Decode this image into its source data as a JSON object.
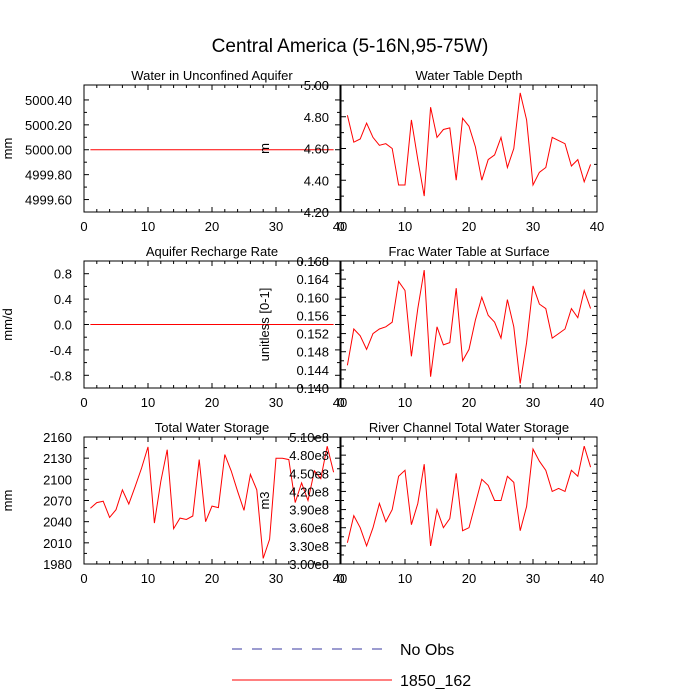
{
  "title": "Central America (5-16N,95-75W)",
  "colors": {
    "series": "#ff0000",
    "obs": "#3a3aa0",
    "axis": "#000000"
  },
  "legend": {
    "entries": [
      {
        "label": "No Obs",
        "style": "dashed",
        "color": "#3a3aa0"
      },
      {
        "label": "1850_162",
        "style": "solid",
        "color": "#ff0000"
      }
    ]
  },
  "chart_data": [
    {
      "type": "line",
      "title": "Water in Unconfined Aquifer",
      "ylabel": "mm",
      "xlabel": "",
      "xlim": [
        0,
        40
      ],
      "ylim": [
        4999.5,
        5000.52
      ],
      "xticks": [
        0,
        10,
        20,
        30,
        40
      ],
      "xtick_labels": [
        "0",
        "10",
        "20",
        "30",
        "40"
      ],
      "yticks": [
        4999.6,
        4999.8,
        5000.0,
        5000.2,
        5000.4
      ],
      "ytick_labels": [
        "4999.60",
        "4999.80",
        "5000.00",
        "5000.20",
        "5000.40"
      ],
      "series": [
        {
          "name": "1850_162",
          "x": [
            1,
            2,
            3,
            4,
            5,
            6,
            7,
            8,
            9,
            10,
            11,
            12,
            13,
            14,
            15,
            16,
            17,
            18,
            19,
            20,
            21,
            22,
            23,
            24,
            25,
            26,
            27,
            28,
            29,
            30,
            31,
            32,
            33,
            34,
            35,
            36,
            37,
            38,
            39
          ],
          "values": [
            5000,
            5000,
            5000,
            5000,
            5000,
            5000,
            5000,
            5000,
            5000,
            5000,
            5000,
            5000,
            5000,
            5000,
            5000,
            5000,
            5000,
            5000,
            5000,
            5000,
            5000,
            5000,
            5000,
            5000,
            5000,
            5000,
            5000,
            5000,
            5000,
            5000,
            5000,
            5000,
            5000,
            5000,
            5000,
            5000,
            5000,
            5000,
            5000
          ]
        }
      ]
    },
    {
      "type": "line",
      "title": "Water Table Depth",
      "ylabel": "m",
      "xlabel": "",
      "xlim": [
        0,
        40
      ],
      "ylim": [
        4.2,
        5.0
      ],
      "xticks": [
        0,
        10,
        20,
        30,
        40
      ],
      "xtick_labels": [
        "0",
        "10",
        "20",
        "30",
        "40"
      ],
      "yticks": [
        4.2,
        4.4,
        4.6,
        4.8,
        5.0
      ],
      "ytick_labels": [
        "4.20",
        "4.40",
        "4.60",
        "4.80",
        "5.00"
      ],
      "series": [
        {
          "name": "1850_162",
          "x": [
            1,
            2,
            3,
            4,
            5,
            6,
            7,
            8,
            9,
            10,
            11,
            12,
            13,
            14,
            15,
            16,
            17,
            18,
            19,
            20,
            21,
            22,
            23,
            24,
            25,
            26,
            27,
            28,
            29,
            30,
            31,
            32,
            33,
            34,
            35,
            36,
            37,
            38,
            39
          ],
          "values": [
            4.81,
            4.64,
            4.66,
            4.76,
            4.67,
            4.62,
            4.63,
            4.6,
            4.37,
            4.37,
            4.78,
            4.53,
            4.3,
            4.86,
            4.67,
            4.72,
            4.73,
            4.4,
            4.79,
            4.74,
            4.61,
            4.4,
            4.53,
            4.56,
            4.67,
            4.48,
            4.6,
            4.95,
            4.78,
            4.37,
            4.45,
            4.48,
            4.67,
            4.65,
            4.63,
            4.49,
            4.53,
            4.39,
            4.5
          ]
        }
      ]
    },
    {
      "type": "line",
      "title": "Aquifer Recharge Rate",
      "ylabel": "mm/d",
      "xlabel": "",
      "xlim": [
        0,
        40
      ],
      "ylim": [
        -1.0,
        1.0
      ],
      "xticks": [
        0,
        10,
        20,
        30,
        40
      ],
      "xtick_labels": [
        "0",
        "10",
        "20",
        "30",
        "40"
      ],
      "yticks": [
        -0.8,
        -0.4,
        0.0,
        0.4,
        0.8
      ],
      "ytick_labels": [
        "-0.8",
        "-0.4",
        "0.0",
        "0.4",
        "0.8"
      ],
      "series": [
        {
          "name": "1850_162",
          "x": [
            1,
            2,
            3,
            4,
            5,
            6,
            7,
            8,
            9,
            10,
            11,
            12,
            13,
            14,
            15,
            16,
            17,
            18,
            19,
            20,
            21,
            22,
            23,
            24,
            25,
            26,
            27,
            28,
            29,
            30,
            31,
            32,
            33,
            34,
            35,
            36,
            37,
            38,
            39
          ],
          "values": [
            0,
            0,
            0,
            0,
            0,
            0,
            0,
            0,
            0,
            0,
            0,
            0,
            0,
            0,
            0,
            0,
            0,
            0,
            0,
            0,
            0,
            0,
            0,
            0,
            0,
            0,
            0,
            0,
            0,
            0,
            0,
            0,
            0,
            0,
            0,
            0,
            0,
            0,
            0
          ]
        }
      ]
    },
    {
      "type": "line",
      "title": "Frac Water Table at Surface",
      "ylabel": "unitless [0-1]",
      "xlabel": "",
      "xlim": [
        0,
        40
      ],
      "ylim": [
        0.14,
        0.168
      ],
      "xticks": [
        0,
        10,
        20,
        30,
        40
      ],
      "xtick_labels": [
        "0",
        "10",
        "20",
        "30",
        "40"
      ],
      "yticks": [
        0.14,
        0.144,
        0.148,
        0.152,
        0.156,
        0.16,
        0.164,
        0.168
      ],
      "ytick_labels": [
        "0.140",
        "0.144",
        "0.148",
        "0.152",
        "0.156",
        "0.160",
        "0.164",
        "0.168"
      ],
      "series": [
        {
          "name": "1850_162",
          "x": [
            1,
            2,
            3,
            4,
            5,
            6,
            7,
            8,
            9,
            10,
            11,
            12,
            13,
            14,
            15,
            16,
            17,
            18,
            19,
            20,
            21,
            22,
            23,
            24,
            25,
            26,
            27,
            28,
            29,
            30,
            31,
            32,
            33,
            34,
            35,
            36,
            37,
            38,
            39
          ],
          "values": [
            0.145,
            0.153,
            0.1515,
            0.1485,
            0.152,
            0.153,
            0.1535,
            0.1545,
            0.1635,
            0.1615,
            0.147,
            0.1575,
            0.166,
            0.1425,
            0.1535,
            0.1495,
            0.15,
            0.162,
            0.146,
            0.1485,
            0.155,
            0.16,
            0.156,
            0.1545,
            0.151,
            0.1595,
            0.1535,
            0.141,
            0.15,
            0.1625,
            0.1585,
            0.1575,
            0.151,
            0.152,
            0.153,
            0.1575,
            0.1555,
            0.1615,
            0.1575
          ]
        }
      ]
    },
    {
      "type": "line",
      "title": "Total Water Storage",
      "ylabel": "mm",
      "xlabel": "",
      "xlim": [
        0,
        40
      ],
      "ylim": [
        1980,
        2160
      ],
      "xticks": [
        0,
        10,
        20,
        30,
        40
      ],
      "xtick_labels": [
        "0",
        "10",
        "20",
        "30",
        "40"
      ],
      "yticks": [
        1980,
        2010,
        2040,
        2070,
        2100,
        2130,
        2160
      ],
      "ytick_labels": [
        "1980",
        "2010",
        "2040",
        "2070",
        "2100",
        "2130",
        "2160"
      ],
      "series": [
        {
          "name": "1850_162",
          "x": [
            1,
            2,
            3,
            4,
            5,
            6,
            7,
            8,
            9,
            10,
            11,
            12,
            13,
            14,
            15,
            16,
            17,
            18,
            19,
            20,
            21,
            22,
            23,
            24,
            25,
            26,
            27,
            28,
            29,
            30,
            31,
            32,
            33,
            34,
            35,
            36,
            37,
            38,
            39
          ],
          "values": [
            2059,
            2067,
            2069,
            2046,
            2057,
            2085,
            2065,
            2090,
            2116,
            2146,
            2038,
            2097,
            2142,
            2030,
            2045,
            2043,
            2048,
            2128,
            2040,
            2062,
            2060,
            2135,
            2112,
            2083,
            2056,
            2107,
            2085,
            1988,
            2015,
            2130,
            2130,
            2128,
            2067,
            2095,
            2070,
            2112,
            2101,
            2147,
            2110
          ]
        }
      ]
    },
    {
      "type": "line",
      "title": "River Channel Total Water Storage",
      "ylabel": "m3",
      "xlabel": "",
      "xlim": [
        0,
        40
      ],
      "ylim": [
        300000000,
        510000000
      ],
      "xticks": [
        0,
        10,
        20,
        30,
        40
      ],
      "xtick_labels": [
        "0",
        "10",
        "20",
        "30",
        "40"
      ],
      "yticks": [
        300000000,
        330000000,
        360000000,
        390000000,
        420000000,
        450000000,
        480000000,
        510000000
      ],
      "ytick_labels": [
        "3.00e8",
        "3.30e8",
        "3.60e8",
        "3.90e8",
        "4.20e8",
        "4.50e8",
        "4.80e8",
        "5.10e8"
      ],
      "series": [
        {
          "name": "1850_162",
          "x": [
            1,
            2,
            3,
            4,
            5,
            6,
            7,
            8,
            9,
            10,
            11,
            12,
            13,
            14,
            15,
            16,
            17,
            18,
            19,
            20,
            21,
            22,
            23,
            24,
            25,
            26,
            27,
            28,
            29,
            30,
            31,
            32,
            33,
            34,
            35,
            36,
            37,
            38,
            39
          ],
          "values": [
            335000000,
            380000000,
            360000000,
            330000000,
            360000000,
            400000000,
            370000000,
            390000000,
            445000000,
            455000000,
            365000000,
            400000000,
            465000000,
            330000000,
            390000000,
            360000000,
            375000000,
            450000000,
            355000000,
            360000000,
            400000000,
            440000000,
            430000000,
            405000000,
            405000000,
            445000000,
            435000000,
            355000000,
            395000000,
            490000000,
            470000000,
            455000000,
            420000000,
            425000000,
            420000000,
            455000000,
            445000000,
            495000000,
            460000000
          ]
        }
      ]
    }
  ]
}
